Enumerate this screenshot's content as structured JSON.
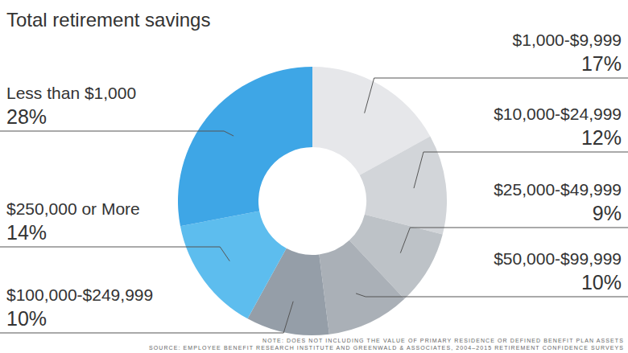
{
  "chart_data": {
    "type": "donut",
    "title": "Total retirement savings",
    "categories": [
      "$1,000-$9,999",
      "$10,000-$24,999",
      "$25,000-$49,999",
      "$50,000-$99,999",
      "$100,000-$249,999",
      "$250,000 or More",
      "Less than $1,000"
    ],
    "values": [
      17,
      12,
      9,
      10,
      10,
      14,
      28
    ],
    "value_labels": [
      "17%",
      "12%",
      "9%",
      "10%",
      "10%",
      "14%",
      "28%"
    ],
    "colors": [
      "#e6e7ea",
      "#d2d5d9",
      "#bdc2c7",
      "#aab0b7",
      "#959ea8",
      "#5dbdee",
      "#3ea6e6"
    ],
    "data_labels": true,
    "annotations": [
      "NOTE: DOES NOT INCLUDING THE VALUE OF PRIMARY RESIDENCE OR DEFINED BENEFIT PLAN ASSETS",
      "SOURCE: EMPLOYEE BENEFIT RESEARCH INSTITUTE AND GREENWALD & ASSOCIATES, 2004–2015 RETIREMENT CONFIDENCE SURVEYS"
    ]
  }
}
